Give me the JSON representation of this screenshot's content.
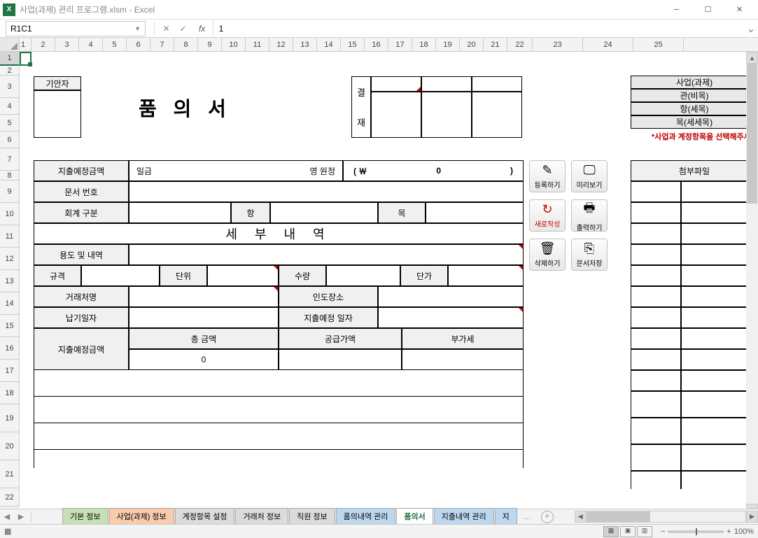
{
  "titlebar": {
    "filename": "사업(과제) 관리 프로그램.xlsm - Excel"
  },
  "formula_bar": {
    "namebox": "R1C1",
    "value": "1"
  },
  "col_headers": {
    "widths": [
      17,
      34,
      34,
      34,
      34,
      34,
      34,
      34,
      34,
      34,
      34,
      34,
      34,
      34,
      34,
      34,
      34,
      34,
      34,
      34,
      34,
      36,
      72,
      72,
      72,
      72
    ],
    "labels": [
      "1",
      "2",
      "3",
      "4",
      "5",
      "6",
      "7",
      "8",
      "9",
      "10",
      "11",
      "12",
      "13",
      "14",
      "15",
      "16",
      "17",
      "18",
      "19",
      "20",
      "21",
      "22",
      "23",
      "24",
      "25"
    ]
  },
  "row_headers": {
    "heights": [
      20,
      14,
      32,
      24,
      24,
      24,
      32,
      14,
      32,
      32,
      32,
      32,
      32,
      32,
      32,
      32,
      32,
      32,
      40,
      40,
      40,
      26
    ],
    "labels": [
      "1",
      "2",
      "3",
      "4",
      "5",
      "6",
      "7",
      "8",
      "9",
      "10",
      "11",
      "12",
      "13",
      "14",
      "15",
      "16",
      "17",
      "18",
      "19",
      "20",
      "21",
      "22"
    ]
  },
  "form": {
    "drafter_label": "기안자",
    "title": "품 의 서",
    "approval_v1": "결",
    "approval_v2": "재",
    "side_labels": [
      "사업(과제)",
      "관(비목)",
      "항(세목)",
      "목(세세목)"
    ],
    "note": "*사업과 계정항목을 선택해주세요",
    "fields": {
      "amount_label": "지출예정금액",
      "amount_text": "일금",
      "amount_unit": "영    원정",
      "amount_paren_l": "( ￦",
      "amount_val": "0",
      "amount_paren_r": ")",
      "doc_no": "문서 번호",
      "acct_div": "회계 구분",
      "hang": "항",
      "mok": "목",
      "detail_title": "세 부 내 역",
      "usage": "용도 및 내역",
      "spec": "규격",
      "unit": "단위",
      "qty": "수량",
      "price": "단가",
      "vendor": "거래처명",
      "delivery": "인도장소",
      "due_date": "납기일자",
      "exp_date": "지출예정 일자",
      "total": "총 금액",
      "supply": "공급가액",
      "vat": "부가세",
      "total_val": "0"
    },
    "buttons": {
      "register": "등록하기",
      "preview": "미리보기",
      "new": "새로작성",
      "print": "출력하기",
      "delete": "삭제하기",
      "save": "문서저장"
    },
    "attach_title": "첨부파일"
  },
  "sheets": {
    "tabs": [
      {
        "label": "기본 정보",
        "cls": "t-basic"
      },
      {
        "label": "사업(과제) 정보",
        "cls": "t-biz"
      },
      {
        "label": "계정항목 설정",
        "cls": "t-acct"
      },
      {
        "label": "거래처 정보",
        "cls": "t-vendor"
      },
      {
        "label": "직원 정보",
        "cls": "t-emp"
      },
      {
        "label": "품의내역 관리",
        "cls": "t-req"
      },
      {
        "label": "품의서",
        "cls": "t-form",
        "active": true
      },
      {
        "label": "지출내역 관리",
        "cls": "t-exp"
      },
      {
        "label": "지",
        "cls": "t-exp"
      }
    ],
    "more": "…"
  },
  "statusbar": {
    "ready_icon": "▦",
    "zoom": "100%"
  }
}
